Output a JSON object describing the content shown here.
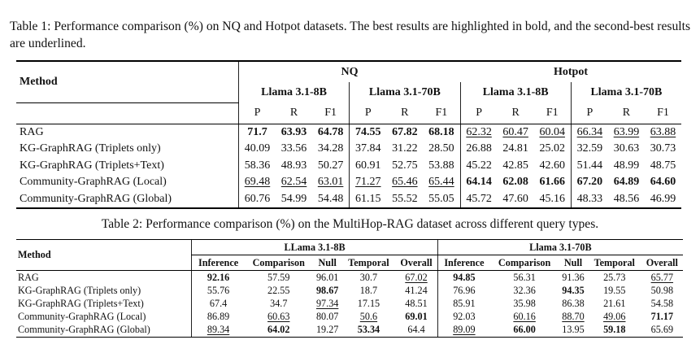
{
  "table1": {
    "caption": "Table 1: Performance comparison (%) on NQ and Hotpot datasets. The best results are highlighted in bold, and the second-best results are underlined.",
    "method_header": "Method",
    "datasets": [
      "NQ",
      "Hotpot"
    ],
    "models": [
      "Llama 3.1-8B",
      "Llama 3.1-70B",
      "Llama 3.1-8B",
      "Llama 3.1-70B"
    ],
    "metrics": [
      "P",
      "R",
      "F1",
      "P",
      "R",
      "F1",
      "P",
      "R",
      "F1",
      "P",
      "R",
      "F1"
    ],
    "rows": [
      {
        "method": "RAG",
        "values": [
          "71.7",
          "63.93",
          "64.78",
          "74.55",
          "67.82",
          "68.18",
          "62.32",
          "60.47",
          "60.04",
          "66.34",
          "63.99",
          "63.88"
        ],
        "style": [
          "b",
          "b",
          "b",
          "b",
          "b",
          "b",
          "u",
          "u",
          "u",
          "u",
          "u",
          "u"
        ]
      },
      {
        "method": "KG-GraphRAG (Triplets only)",
        "values": [
          "40.09",
          "33.56",
          "34.28",
          "37.84",
          "31.22",
          "28.50",
          "26.88",
          "24.81",
          "25.02",
          "32.59",
          "30.63",
          "30.73"
        ],
        "style": [
          "",
          "",
          "",
          "",
          "",
          "",
          "",
          "",
          "",
          "",
          "",
          ""
        ]
      },
      {
        "method": "KG-GraphRAG (Triplets+Text)",
        "values": [
          "58.36",
          "48.93",
          "50.27",
          "60.91",
          "52.75",
          "53.88",
          "45.22",
          "42.85",
          "42.60",
          "51.44",
          "48.99",
          "48.75"
        ],
        "style": [
          "",
          "",
          "",
          "",
          "",
          "",
          "",
          "",
          "",
          "",
          "",
          ""
        ]
      },
      {
        "method": "Community-GraphRAG (Local)",
        "values": [
          "69.48",
          "62.54",
          "63.01",
          "71.27",
          "65.46",
          "65.44",
          "64.14",
          "62.08",
          "61.66",
          "67.20",
          "64.89",
          "64.60"
        ],
        "style": [
          "u",
          "u",
          "u",
          "u",
          "u",
          "u",
          "b",
          "b",
          "b",
          "b",
          "b",
          "b"
        ]
      },
      {
        "method": "Community-GraphRAG (Global)",
        "values": [
          "60.76",
          "54.99",
          "54.48",
          "61.15",
          "55.52",
          "55.05",
          "45.72",
          "47.60",
          "45.16",
          "48.33",
          "48.56",
          "46.99"
        ],
        "style": [
          "",
          "",
          "",
          "",
          "",
          "",
          "",
          "",
          "",
          "",
          "",
          ""
        ]
      }
    ]
  },
  "table2": {
    "caption": "Table 2: Performance comparison (%) on the MultiHop-RAG dataset across different query types.",
    "method_header": "Method",
    "models": [
      "LLama 3.1-8B",
      "Llama 3.1-70B"
    ],
    "metrics": [
      "Inference",
      "Comparison",
      "Null",
      "Temporal",
      "Overall",
      "Inference",
      "Comparison",
      "Null",
      "Temporal",
      "Overall"
    ],
    "rows": [
      {
        "method": "RAG",
        "values": [
          "92.16",
          "57.59",
          "96.01",
          "30.7",
          "67.02",
          "94.85",
          "56.31",
          "91.36",
          "25.73",
          "65.77"
        ],
        "style": [
          "b",
          "",
          "",
          "",
          "u",
          "b",
          "",
          "",
          "",
          "u"
        ]
      },
      {
        "method": "KG-GraphRAG (Triplets only)",
        "values": [
          "55.76",
          "22.55",
          "98.67",
          "18.7",
          "41.24",
          "76.96",
          "32.36",
          "94.35",
          "19.55",
          "50.98"
        ],
        "style": [
          "",
          "",
          "b",
          "",
          "",
          "",
          "",
          "b",
          "",
          ""
        ]
      },
      {
        "method": "KG-GraphRAG (Triplets+Text)",
        "values": [
          "67.4",
          "34.7",
          "97.34",
          "17.15",
          "48.51",
          "85.91",
          "35.98",
          "86.38",
          "21.61",
          "54.58"
        ],
        "style": [
          "",
          "",
          "u",
          "",
          "",
          "",
          "",
          "",
          "",
          ""
        ]
      },
      {
        "method": "Community-GraphRAG (Local)",
        "values": [
          "86.89",
          "60.63",
          "80.07",
          "50.6",
          "69.01",
          "92.03",
          "60.16",
          "88.70",
          "49.06",
          "71.17"
        ],
        "style": [
          "",
          "u",
          "",
          "u",
          "b",
          "",
          "u",
          "u",
          "u",
          "b"
        ]
      },
      {
        "method": "Community-GraphRAG (Global)",
        "values": [
          "89.34",
          "64.02",
          "19.27",
          "53.34",
          "64.4",
          "89.09",
          "66.00",
          "13.95",
          "59.18",
          "65.69"
        ],
        "style": [
          "u",
          "b",
          "",
          "b",
          "",
          "u",
          "b",
          "",
          "b",
          ""
        ]
      }
    ]
  }
}
